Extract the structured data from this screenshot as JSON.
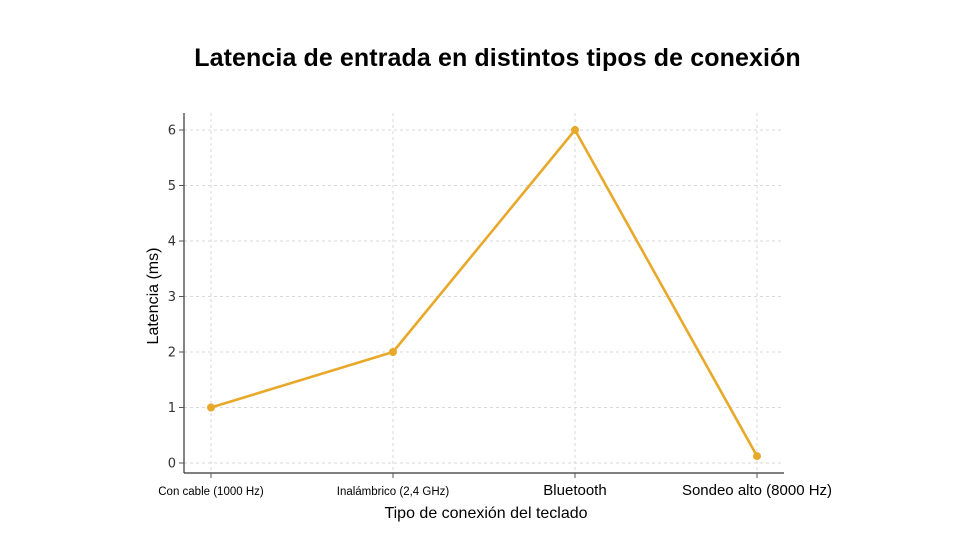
{
  "chart_data": {
    "type": "line",
    "title": "Latencia de entrada en distintos tipos de conexión",
    "xlabel": "Tipo de conexión del teclado",
    "ylabel": "Latencia (ms)",
    "categories": [
      "Con cable (1000 Hz)",
      "Inalámbrico (2,4 GHz)",
      "Bluetooth",
      "Sondeo alto (8000 Hz)"
    ],
    "values": [
      1,
      2,
      6,
      0.125
    ],
    "ylim": [
      0,
      6
    ],
    "yticks": [
      0,
      1,
      2,
      3,
      4,
      5,
      6
    ],
    "grid": true,
    "line_color": "#E8A82A"
  }
}
